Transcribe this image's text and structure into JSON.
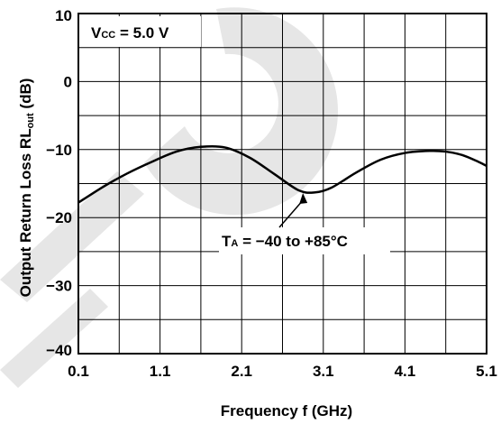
{
  "chart_data": {
    "type": "line",
    "xlabel": "Frequency  f (GHz)",
    "ylabel_main": "Output Return Loss  RL",
    "ylabel_sub": "out",
    "ylabel_unit": " (dB)",
    "xlim": [
      0.1,
      5.1
    ],
    "ylim": [
      -40,
      10
    ],
    "xticks": [
      0.1,
      1.1,
      2.1,
      3.1,
      4.1,
      5.1
    ],
    "xtick_labels": [
      "0.1",
      "1.1",
      "2.1",
      "3.1",
      "4.1",
      "5.1"
    ],
    "yticks": [
      10,
      0,
      -10,
      -20,
      -30,
      -40
    ],
    "ytick_labels": [
      "10",
      "0",
      "−10",
      "−20",
      "−30",
      "−40"
    ],
    "grid": true,
    "series": [
      {
        "x": [
          0.1,
          0.4,
          0.7,
          1.0,
          1.3,
          1.6,
          1.9,
          2.2,
          2.5,
          2.8,
          3.0,
          3.2,
          3.5,
          3.8,
          4.1,
          4.4,
          4.6,
          4.8,
          5.0,
          5.1
        ],
        "y": [
          -17.8,
          -15.5,
          -13.5,
          -11.8,
          -10.3,
          -9.6,
          -9.7,
          -11.2,
          -13.6,
          -16.0,
          -16.3,
          -15.6,
          -13.4,
          -11.5,
          -10.5,
          -10.2,
          -10.3,
          -10.8,
          -11.8,
          -12.4
        ]
      }
    ],
    "annotations": {
      "vcc": {
        "main": "V",
        "sub": "CC",
        "rest": " = 5.0 V"
      },
      "ta": {
        "main": "T",
        "sub": "A",
        "rest": " = −40 to +85°C",
        "target": [
          2.85,
          -16.0
        ]
      }
    }
  },
  "colors": {
    "line": "#000000",
    "grid": "#000000",
    "watermark": "#e6e6e6"
  }
}
